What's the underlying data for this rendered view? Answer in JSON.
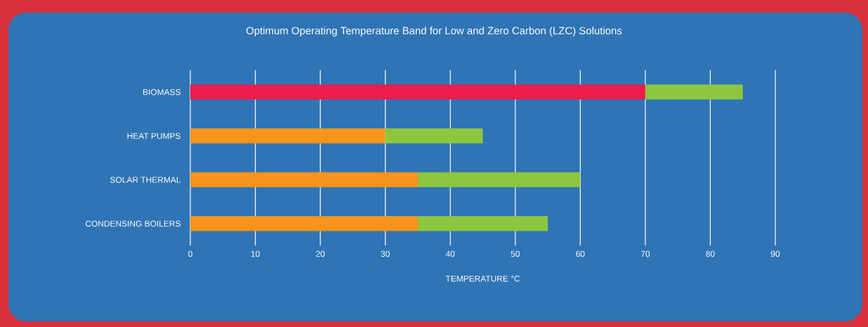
{
  "chart_data": {
    "type": "bar",
    "orientation": "horizontal",
    "stacked": true,
    "title": "Optimum Operating Temperature Band for Low and Zero Carbon (LZC) Solutions",
    "xlabel": "TEMPERATURE °C",
    "categories": [
      "BIOMASS",
      "HEAT PUMPS",
      "SOLAR THERMAL",
      "CONDENSING BOILERS"
    ],
    "series": [
      {
        "colors": [
          "#ed1c4a",
          "#f7941d",
          "#f7941d",
          "#f7941d"
        ],
        "values": [
          70,
          30,
          35,
          35
        ]
      },
      {
        "color": "#8dc63f",
        "values": [
          15,
          15,
          25,
          20
        ]
      }
    ],
    "xlim": [
      0,
      90
    ],
    "xticks": [
      0,
      10,
      20,
      30,
      40,
      50,
      60,
      70,
      80,
      90
    ],
    "grid": "x"
  }
}
